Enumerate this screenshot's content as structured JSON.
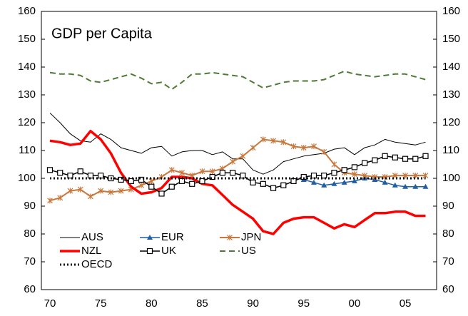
{
  "chart_data": {
    "type": "line",
    "title": "GDP per Capita",
    "categories": [
      "70",
      null,
      null,
      null,
      null,
      "75",
      null,
      null,
      null,
      null,
      "80",
      null,
      null,
      null,
      null,
      "85",
      null,
      null,
      null,
      null,
      "90",
      null,
      null,
      null,
      null,
      "95",
      null,
      null,
      null,
      null,
      "00",
      null,
      null,
      null,
      null,
      "05",
      null,
      null
    ],
    "series": [
      {
        "name": "AUS",
        "color": "#000000",
        "width": 1,
        "dash": "none",
        "marker": "none",
        "values": [
          123.5,
          120,
          116,
          113.5,
          113,
          116,
          114,
          111,
          110,
          109,
          111,
          111.5,
          108,
          109.5,
          110,
          110,
          108.5,
          109.5,
          107,
          107,
          103,
          101.5,
          103,
          106,
          107,
          108,
          108.5,
          109,
          110.5,
          111,
          108.5,
          111,
          112,
          114,
          113,
          112.5,
          112,
          113
        ]
      },
      {
        "name": "EUR",
        "color": "#1f5fa8",
        "width": 1.5,
        "dash": "none",
        "marker": "triangle",
        "values": [
          null,
          null,
          null,
          null,
          null,
          null,
          null,
          null,
          null,
          null,
          null,
          null,
          null,
          null,
          null,
          null,
          null,
          null,
          null,
          null,
          null,
          null,
          null,
          null,
          null,
          99.5,
          98.5,
          97.5,
          98,
          98.5,
          99,
          100,
          99.5,
          98.5,
          97.5,
          97,
          97,
          97
        ]
      },
      {
        "name": "JPN",
        "color": "#c8783c",
        "width": 2,
        "dash": "none",
        "marker": "cross",
        "values": [
          92,
          93,
          95.5,
          96,
          93.5,
          95.5,
          95,
          95.5,
          96,
          97.5,
          99,
          100.5,
          103,
          102,
          101,
          102.5,
          102.5,
          103.5,
          106,
          108,
          111,
          114,
          113.5,
          113,
          111.5,
          111,
          111.5,
          109.5,
          105,
          102,
          101.5,
          101,
          100.5,
          100.5,
          101,
          101,
          101,
          101
        ]
      },
      {
        "name": "NZL",
        "color": "#ff0000",
        "width": 3.5,
        "dash": "none",
        "marker": "none",
        "values": [
          113.5,
          113,
          112,
          112.5,
          117,
          114,
          109,
          102,
          97,
          94.5,
          95,
          96.5,
          100.5,
          100.5,
          100,
          98,
          97.5,
          94,
          90.5,
          88,
          85.5,
          81,
          80,
          84,
          85.5,
          86,
          86,
          84,
          82,
          83.5,
          82.5,
          85,
          87.5,
          87.5,
          88,
          88,
          86.5,
          86.5
        ]
      },
      {
        "name": "UK",
        "color": "#000000",
        "width": 1.5,
        "dash": "none",
        "marker": "square",
        "values": [
          103,
          102,
          101,
          102.5,
          101,
          101,
          100,
          99.5,
          99,
          99.5,
          97,
          94.5,
          97,
          99,
          98,
          99,
          100.5,
          102,
          102,
          101,
          98.5,
          98,
          96.5,
          97.5,
          99,
          100.5,
          101,
          101,
          102,
          103,
          104,
          105.5,
          106.5,
          108,
          107.5,
          107,
          107,
          108
        ]
      },
      {
        "name": "US",
        "color": "#4f7a34",
        "width": 2,
        "dash": "8 5",
        "marker": "none",
        "values": [
          138,
          137.5,
          137.5,
          137,
          135,
          134.5,
          135.5,
          136.5,
          137.5,
          136,
          134,
          134.5,
          132,
          134.5,
          137.5,
          137.5,
          138,
          137.5,
          137,
          136.5,
          134.5,
          132.5,
          133.5,
          134.5,
          135,
          135,
          135,
          135.5,
          137,
          138.5,
          137.5,
          137,
          136.5,
          137,
          137.5,
          137.5,
          136.5,
          135.5
        ]
      },
      {
        "name": "OECD",
        "color": "#000000",
        "width": 3,
        "dash": "2 3",
        "marker": "none",
        "values": [
          100,
          100,
          100,
          100,
          100,
          100,
          100,
          100,
          100,
          100,
          100,
          100,
          100,
          100,
          100,
          100,
          100,
          100,
          100,
          100,
          100,
          100,
          100,
          100,
          100,
          100,
          100,
          100,
          100,
          100,
          100,
          100,
          100,
          100,
          100,
          100,
          100,
          100
        ]
      }
    ],
    "ylim": [
      60,
      160
    ],
    "yticks": [
      60,
      70,
      80,
      90,
      100,
      110,
      120,
      130,
      140,
      150,
      160
    ],
    "y2lim": [
      60,
      160
    ],
    "y2ticks": [
      60,
      70,
      80,
      90,
      100,
      110,
      120,
      130,
      140,
      150,
      160
    ],
    "legend": "lower left"
  }
}
